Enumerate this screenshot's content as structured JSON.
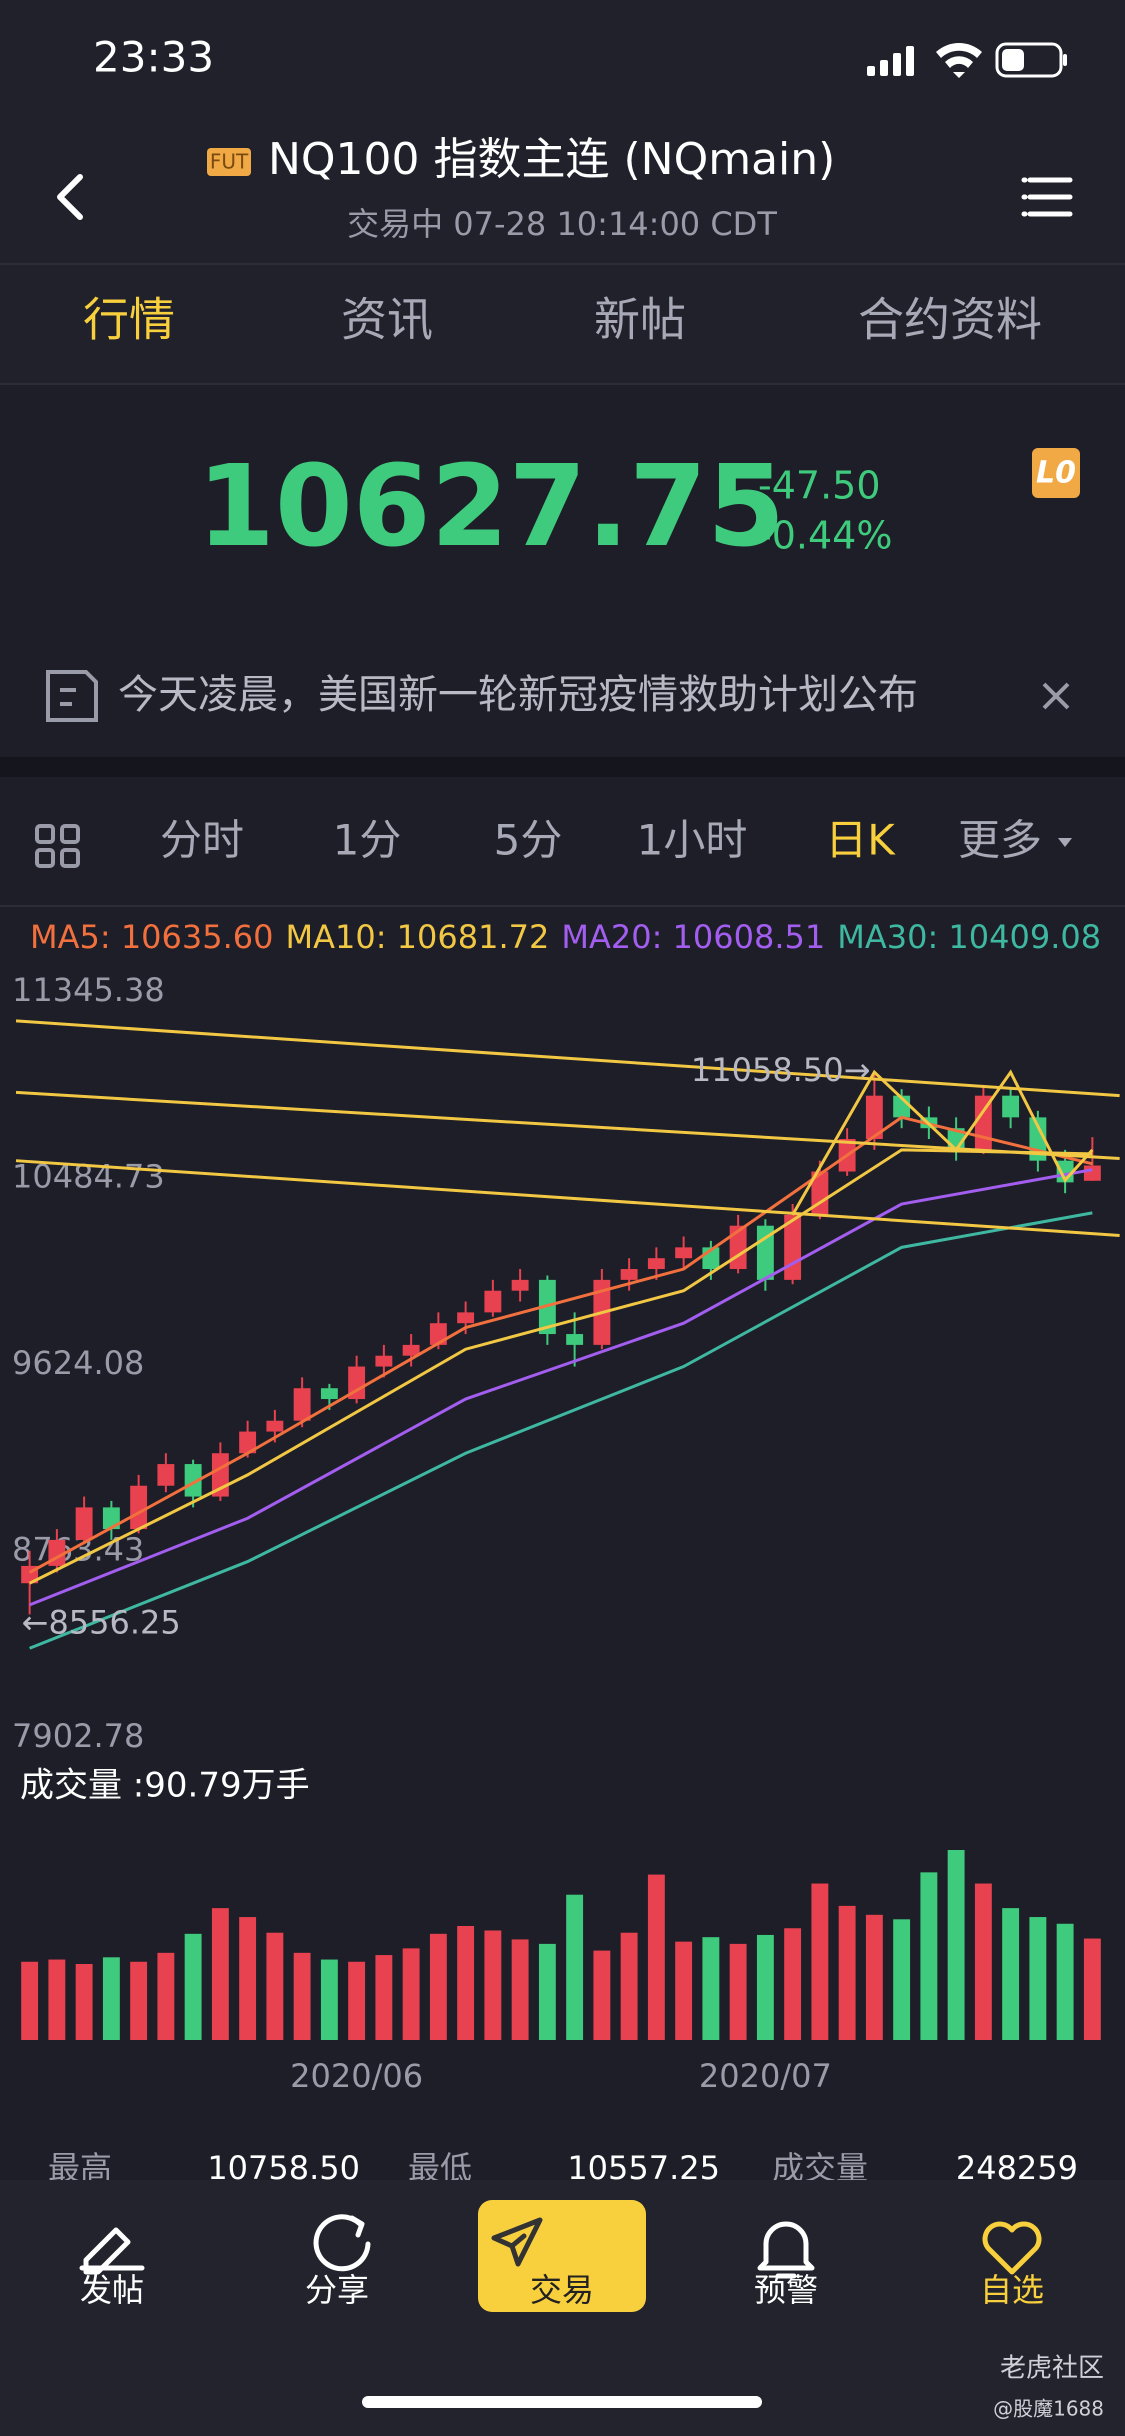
{
  "status": {
    "time": "23:33"
  },
  "header": {
    "badge": "FUT",
    "title": "NQ100 指数主连 (NQmain)",
    "subtitle": "交易中 07-28 10:14:00 CDT"
  },
  "tabs": [
    "行情",
    "资讯",
    "新帖",
    "合约资料"
  ],
  "active_tab": 0,
  "quote": {
    "price": "10627.75",
    "change": "-47.50",
    "change_pct": "-0.44%",
    "badge": "L0"
  },
  "news": "今天凌晨，美国新一轮新冠疫情救助计划公布",
  "periods": [
    "分时",
    "1分",
    "5分",
    "1小时",
    "日K",
    "更多"
  ],
  "active_period": 4,
  "chart_data": {
    "type": "candlestick",
    "legend": [
      {
        "text": "MA5: 10635.60",
        "color": "#f2703e"
      },
      {
        "text": "MA10: 10681.72",
        "color": "#f2c744"
      },
      {
        "text": "MA20: 10608.51",
        "color": "#a35ef0"
      },
      {
        "text": "MA30: 10409.08",
        "color": "#3fb8a2"
      }
    ],
    "ylim": [
      7902.78,
      11345.38
    ],
    "yticks": [
      11345.38,
      10484.73,
      9624.08,
      8763.43,
      7902.78
    ],
    "up_color": "#e8414f",
    "down_color": "#3fcb7d",
    "candles": [
      [
        8700,
        8850,
        8556.25,
        8780
      ],
      [
        8780,
        8950,
        8750,
        8900
      ],
      [
        8900,
        9100,
        8880,
        9050
      ],
      [
        9050,
        9080,
        8900,
        8950
      ],
      [
        8950,
        9200,
        8930,
        9150
      ],
      [
        9150,
        9300,
        9120,
        9250
      ],
      [
        9250,
        9270,
        9050,
        9100
      ],
      [
        9100,
        9350,
        9080,
        9300
      ],
      [
        9300,
        9450,
        9280,
        9400
      ],
      [
        9400,
        9500,
        9350,
        9450
      ],
      [
        9450,
        9650,
        9420,
        9600
      ],
      [
        9600,
        9620,
        9500,
        9550
      ],
      [
        9550,
        9750,
        9530,
        9700
      ],
      [
        9700,
        9800,
        9650,
        9750
      ],
      [
        9750,
        9850,
        9700,
        9800
      ],
      [
        9800,
        9950,
        9780,
        9900
      ],
      [
        9900,
        10000,
        9850,
        9950
      ],
      [
        9950,
        10100,
        9930,
        10050
      ],
      [
        10050,
        10150,
        10000,
        10100
      ],
      [
        10100,
        10120,
        9800,
        9850
      ],
      [
        9850,
        9950,
        9700,
        9800
      ],
      [
        9800,
        10150,
        9780,
        10100
      ],
      [
        10100,
        10200,
        10050,
        10150
      ],
      [
        10150,
        10250,
        10100,
        10200
      ],
      [
        10200,
        10300,
        10150,
        10250
      ],
      [
        10250,
        10280,
        10100,
        10150
      ],
      [
        10150,
        10400,
        10130,
        10350
      ],
      [
        10350,
        10380,
        10050,
        10100
      ],
      [
        10100,
        10450,
        10080,
        10400
      ],
      [
        10400,
        10650,
        10380,
        10600
      ],
      [
        10600,
        10800,
        10580,
        10750
      ],
      [
        10750,
        11058.5,
        10700,
        10950
      ],
      [
        10950,
        10980,
        10800,
        10850
      ],
      [
        10850,
        10900,
        10750,
        10800
      ],
      [
        10800,
        10850,
        10650,
        10700
      ],
      [
        10700,
        11000,
        10680,
        10950
      ],
      [
        10950,
        10980,
        10800,
        10850
      ],
      [
        10850,
        10880,
        10600,
        10650
      ],
      [
        10650,
        10700,
        10500,
        10550
      ],
      [
        10557.25,
        10758.5,
        10557.25,
        10627.75
      ]
    ],
    "ma": [
      {
        "color": "#f2703e",
        "x": [
          0,
          8,
          16,
          24,
          32,
          39
        ],
        "values": [
          8750,
          9300,
          9880,
          10150,
          10850,
          10635.6
        ]
      },
      {
        "color": "#f2c744",
        "x": [
          0,
          8,
          16,
          24,
          32,
          39
        ],
        "values": [
          8700,
          9200,
          9780,
          10050,
          10700,
          10681.72
        ]
      },
      {
        "color": "#a35ef0",
        "x": [
          0,
          8,
          16,
          24,
          32,
          39
        ],
        "values": [
          8600,
          9000,
          9550,
          9900,
          10450,
          10608.51
        ]
      },
      {
        "color": "#3fb8a2",
        "x": [
          0,
          8,
          16,
          24,
          32,
          39
        ],
        "values": [
          8400,
          8800,
          9300,
          9700,
          10250,
          10409.08
        ]
      }
    ],
    "trend_color": "#f2c744",
    "trendlines": [
      [
        -0.5,
        11295,
        40,
        10950
      ],
      [
        -0.5,
        10965,
        40,
        10660
      ],
      [
        -0.5,
        10650,
        40,
        10305
      ]
    ],
    "zigzag": {
      "x": [
        28,
        31,
        34,
        36,
        38,
        39
      ],
      "values": [
        10400,
        11058.5,
        10700,
        11058,
        10560,
        10700
      ]
    },
    "annotations": [
      {
        "text": "11058.50→",
        "x": 31,
        "y": 11058.5,
        "anchor": "end"
      },
      {
        "text": "←8556.25",
        "x": 0,
        "y": 8556.25,
        "anchor": "start"
      }
    ],
    "volume_label": "成交量 :90.79万手",
    "volumes": [
      70,
      72,
      68,
      74,
      70,
      78,
      95,
      118,
      110,
      96,
      78,
      72,
      70,
      76,
      82,
      95,
      102,
      98,
      90,
      86,
      130,
      80,
      96,
      148,
      88,
      92,
      86,
      94,
      100,
      140,
      120,
      112,
      108,
      150,
      170,
      140,
      118,
      110,
      104,
      90.79
    ],
    "date_labels": [
      {
        "index": 12,
        "label": "2020/06"
      },
      {
        "index": 27,
        "label": "2020/07"
      }
    ]
  },
  "stats": [
    [
      "最高",
      "10758.50"
    ],
    [
      "最低",
      "10557.25"
    ],
    [
      "成交量",
      "248259"
    ]
  ],
  "nav": [
    "发帖",
    "分享",
    "交易",
    "预警",
    "自选"
  ],
  "watermark": [
    "老虎社区",
    "@股魔1688"
  ]
}
